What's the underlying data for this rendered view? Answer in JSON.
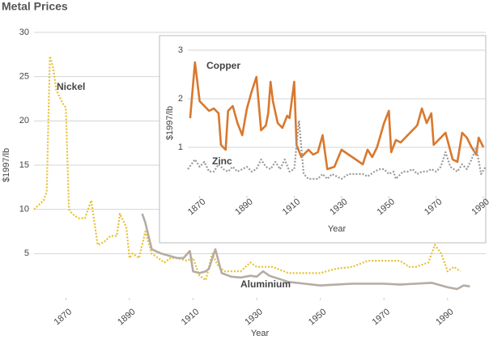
{
  "chart_data": [
    {
      "type": "line",
      "title": "Metal Prices",
      "xlabel": "Year",
      "ylabel": "$1997/lb",
      "xlim": [
        1860,
        2002
      ],
      "xticks": [
        1870,
        1890,
        1910,
        1930,
        1950,
        1970,
        1990
      ],
      "ylim": [
        0,
        30
      ],
      "yticks": [
        5,
        10,
        15,
        20,
        25,
        30
      ],
      "grid": true,
      "series": [
        {
          "name": "Nickel",
          "color": "#e6c02f",
          "style": "dotted",
          "x": [
            1860,
            1863,
            1864,
            1865,
            1866,
            1867,
            1869,
            1870,
            1871,
            1872,
            1874,
            1876,
            1878,
            1880,
            1882,
            1884,
            1886,
            1887,
            1889,
            1890,
            1891,
            1893,
            1895,
            1897,
            1899,
            1901,
            1903,
            1905,
            1908,
            1910,
            1912,
            1914,
            1916,
            1918,
            1920,
            1925,
            1928,
            1930,
            1935,
            1940,
            1950,
            1955,
            1960,
            1965,
            1975,
            1978,
            1980,
            1984,
            1986,
            1988,
            1990,
            1992,
            1994
          ],
          "values": [
            10,
            11,
            12,
            27.3,
            26,
            23.5,
            22,
            21.5,
            10,
            9.5,
            9,
            9,
            11,
            6,
            6.3,
            7,
            7,
            9.5,
            8,
            4.5,
            5,
            4.5,
            7.5,
            5,
            4.5,
            4,
            4.5,
            4.5,
            4.2,
            4.5,
            2.5,
            2,
            5,
            3.5,
            3,
            3,
            4,
            3.5,
            3.5,
            2.8,
            2.8,
            3.3,
            3.5,
            4.2,
            4.2,
            3.5,
            3.5,
            4,
            6,
            5,
            3,
            3.5,
            3
          ]
        },
        {
          "name": "Aluminium",
          "color": "#b5aca3",
          "style": "solid",
          "x": [
            1894,
            1895,
            1897,
            1900,
            1905,
            1907,
            1909,
            1910,
            1912,
            1914,
            1915,
            1917,
            1919,
            1922,
            1925,
            1928,
            1930,
            1932,
            1934,
            1940,
            1945,
            1950,
            1955,
            1960,
            1970,
            1975,
            1980,
            1985,
            1987,
            1990,
            1993,
            1995,
            1997
          ],
          "values": [
            9.5,
            8.5,
            5.5,
            5,
            4.5,
            4.5,
            5.3,
            3,
            2.8,
            3,
            3.3,
            5.5,
            2.8,
            2.4,
            2.3,
            2.5,
            2.4,
            3,
            2.5,
            1.8,
            1.6,
            1.4,
            1.5,
            1.6,
            1.6,
            1.5,
            1.6,
            1.7,
            1.5,
            1.2,
            1,
            1.4,
            1.3
          ]
        }
      ]
    },
    {
      "type": "line",
      "xlabel": "Year",
      "ylabel": "$1997/lb",
      "xlim": [
        1865,
        1991
      ],
      "xticks": [
        1870,
        1890,
        1910,
        1930,
        1950,
        1970,
        1990
      ],
      "ylim": [
        0,
        3
      ],
      "yticks": [
        1,
        2,
        3
      ],
      "grid": true,
      "series": [
        {
          "name": "Copper",
          "color": "#d9782d",
          "style": "solid",
          "x": [
            1866,
            1868,
            1870,
            1872,
            1874,
            1876,
            1878,
            1879,
            1881,
            1882,
            1884,
            1886,
            1888,
            1890,
            1892,
            1894,
            1896,
            1898,
            1899,
            1900,
            1901,
            1903,
            1905,
            1907,
            1908,
            1910,
            1911,
            1913,
            1916,
            1918,
            1920,
            1922,
            1924,
            1927,
            1930,
            1933,
            1936,
            1939,
            1941,
            1943,
            1945,
            1948,
            1950,
            1951,
            1953,
            1955,
            1959,
            1962,
            1964,
            1966,
            1968,
            1969,
            1972,
            1974,
            1977,
            1979,
            1981,
            1983,
            1985,
            1987,
            1988,
            1990
          ],
          "values": [
            1.6,
            2.75,
            1.95,
            1.85,
            1.75,
            1.8,
            1.7,
            1.05,
            0.95,
            1.75,
            1.85,
            1.5,
            1.25,
            1.8,
            2.15,
            2.45,
            1.35,
            1.45,
            1.7,
            2.35,
            1.95,
            1.5,
            1.4,
            1.65,
            1.6,
            2.35,
            1.05,
            0.8,
            0.95,
            0.85,
            0.9,
            1.25,
            0.55,
            0.6,
            0.95,
            0.85,
            0.75,
            0.65,
            0.95,
            0.8,
            1,
            1.5,
            1.75,
            0.9,
            1.15,
            1.1,
            1.3,
            1.45,
            1.8,
            1.5,
            1.7,
            1.05,
            1.2,
            1.3,
            0.75,
            0.7,
            1.3,
            1.2,
            1,
            0.85,
            1.2,
            1
          ]
        },
        {
          "name": "Zinc",
          "color": "#9a9a9a",
          "style": "dotted",
          "x": [
            1865,
            1868,
            1870,
            1872,
            1874,
            1876,
            1878,
            1880,
            1882,
            1884,
            1886,
            1888,
            1890,
            1892,
            1894,
            1896,
            1898,
            1900,
            1902,
            1904,
            1906,
            1908,
            1910,
            1912,
            1914,
            1916,
            1918,
            1920,
            1922,
            1924,
            1926,
            1930,
            1933,
            1936,
            1939,
            1941,
            1944,
            1946,
            1948,
            1950,
            1952,
            1953,
            1956,
            1958,
            1960,
            1962,
            1964,
            1966,
            1968,
            1970,
            1972,
            1974,
            1976,
            1979,
            1981,
            1983,
            1985,
            1987,
            1989,
            1991
          ],
          "values": [
            0.55,
            0.75,
            0.6,
            0.7,
            0.5,
            0.5,
            0.65,
            0.55,
            0.5,
            0.6,
            0.5,
            0.55,
            0.6,
            0.5,
            0.55,
            0.75,
            0.6,
            0.55,
            0.7,
            0.55,
            0.75,
            0.5,
            0.55,
            1.55,
            0.45,
            0.35,
            0.35,
            0.35,
            0.45,
            0.35,
            0.45,
            0.35,
            0.45,
            0.45,
            0.45,
            0.4,
            0.5,
            0.55,
            0.55,
            0.45,
            0.5,
            0.35,
            0.5,
            0.5,
            0.55,
            0.45,
            0.5,
            0.5,
            0.55,
            0.5,
            0.6,
            0.9,
            0.6,
            0.5,
            0.65,
            0.55,
            0.75,
            1,
            0.45,
            0.6
          ]
        }
      ]
    }
  ]
}
